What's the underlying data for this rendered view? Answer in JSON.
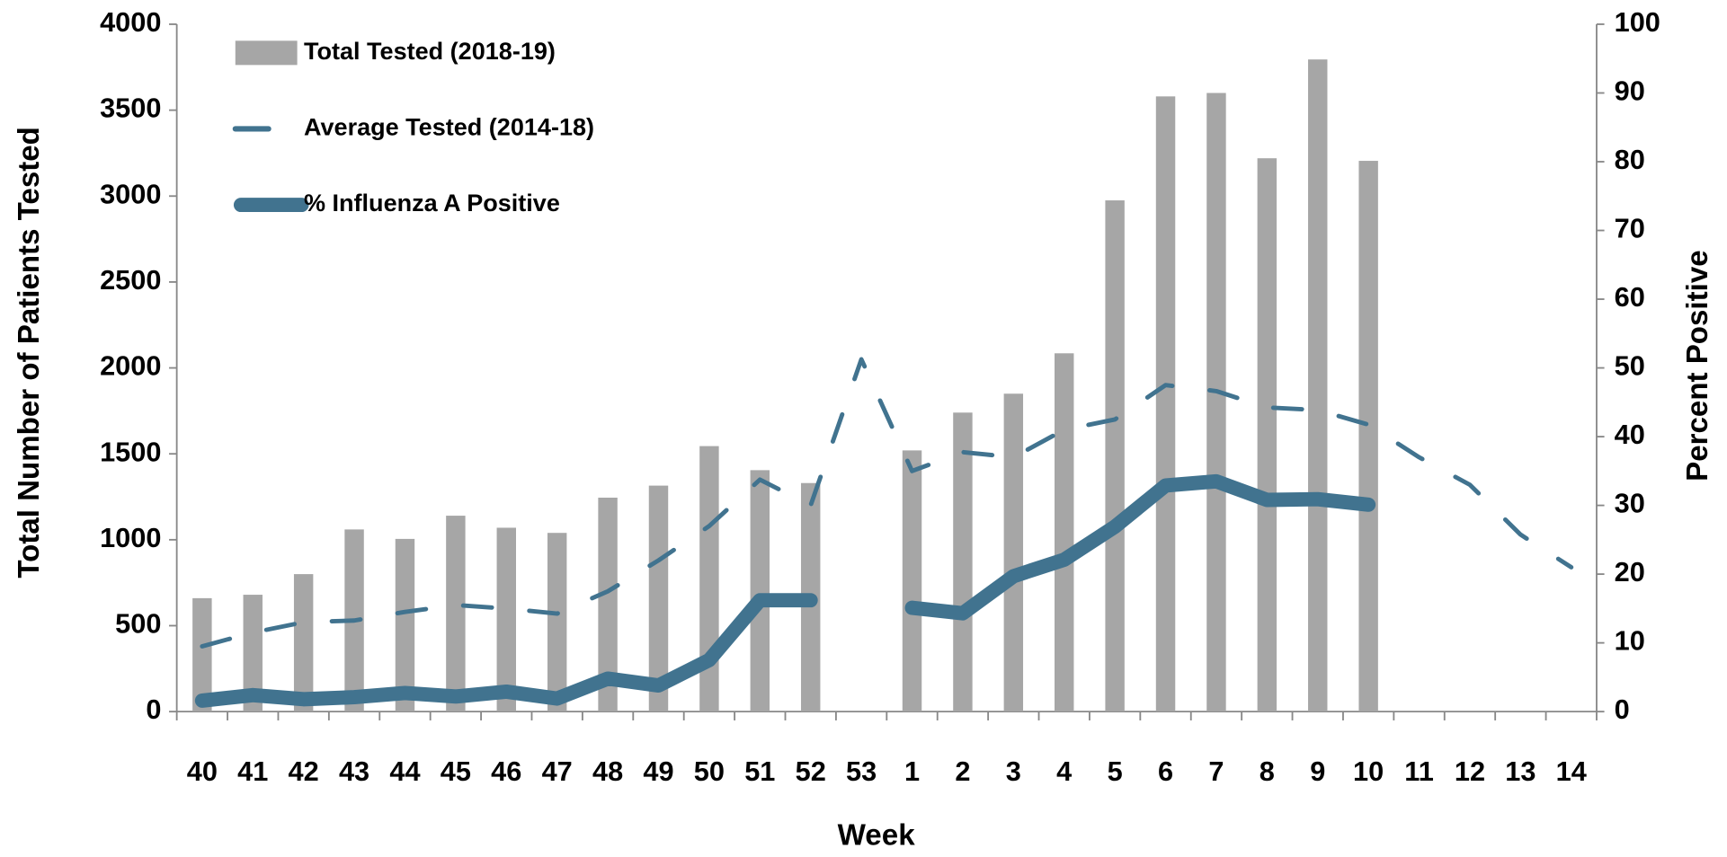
{
  "chart_data": {
    "type": "bar-line",
    "x_label": "Week",
    "y_label": "Total Number of Patients Tested",
    "y2_label": "Percent Positive",
    "categories": [
      "40",
      "41",
      "42",
      "43",
      "44",
      "45",
      "46",
      "47",
      "48",
      "49",
      "50",
      "51",
      "52",
      "53",
      "1",
      "2",
      "3",
      "4",
      "5",
      "6",
      "7",
      "8",
      "9",
      "10",
      "11",
      "12",
      "13",
      "14"
    ],
    "series": [
      {
        "name": "Total Tested (2018-19)",
        "type": "bar",
        "color": "#a6a6a6",
        "values": [
          660,
          680,
          800,
          1060,
          1005,
          1140,
          1070,
          1040,
          1245,
          1315,
          1545,
          1405,
          1330,
          null,
          1520,
          1740,
          1850,
          2085,
          2975,
          3580,
          3600,
          3220,
          3795,
          3205,
          null,
          null,
          null,
          null
        ]
      },
      {
        "name": "Average Tested (2014-18)",
        "type": "line",
        "dashed": true,
        "color": "#41738f",
        "values": [
          380,
          460,
          520,
          530,
          580,
          620,
          600,
          570,
          700,
          880,
          1080,
          1350,
          1200,
          2050,
          1400,
          1510,
          1480,
          1640,
          1700,
          1900,
          1865,
          1770,
          1755,
          1670,
          1480,
          1320,
          1030,
          840
        ]
      },
      {
        "name": "% Influenza A Positive",
        "type": "line",
        "axis": "y2",
        "color": "#41738f",
        "values": [
          1.6,
          2.4,
          1.8,
          2.1,
          2.7,
          2.2,
          2.9,
          1.9,
          4.8,
          3.8,
          7.5,
          16.2,
          16.2,
          null,
          15.1,
          14.3,
          19.7,
          22.1,
          26.9,
          32.9,
          33.5,
          30.8,
          30.9,
          30.1,
          null,
          null,
          null,
          null
        ]
      }
    ],
    "ylim": [
      0,
      4000
    ],
    "yticks": [
      0,
      500,
      1000,
      1500,
      2000,
      2500,
      3000,
      3500,
      4000
    ],
    "y2lim": [
      0,
      100
    ],
    "y2ticks": [
      0,
      10,
      20,
      30,
      40,
      50,
      60,
      70,
      80,
      90,
      100
    ],
    "legend": "upper left",
    "grid": false
  }
}
